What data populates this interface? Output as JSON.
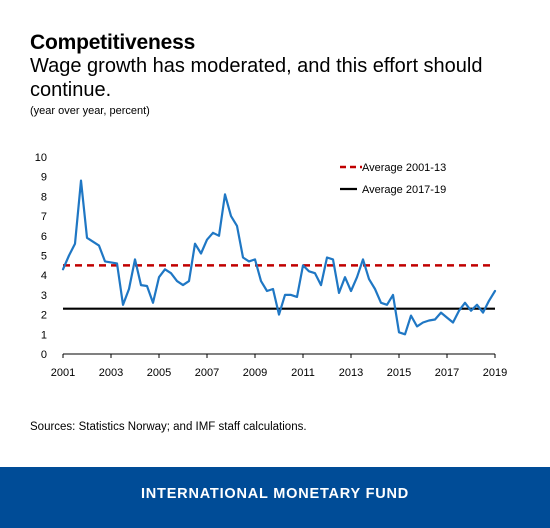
{
  "header": {
    "title": "Competitiveness",
    "subtitle": "Wage growth has moderated, and this effort should continue.",
    "units": "(year over year, percent)"
  },
  "source": "Sources: Statistics Norway; and IMF staff calculations.",
  "footer": {
    "org_name": "INTERNATIONAL MONETARY FUND",
    "color": "#004c97"
  },
  "chart_data": {
    "type": "line",
    "title": "",
    "xlabel": "",
    "ylabel": "",
    "xlim": [
      2001,
      2019
    ],
    "ylim": [
      0,
      10
    ],
    "x_ticks": [
      2001,
      2003,
      2005,
      2007,
      2009,
      2011,
      2013,
      2015,
      2017,
      2019
    ],
    "y_ticks": [
      0,
      1,
      2,
      3,
      4,
      5,
      6,
      7,
      8,
      9,
      10
    ],
    "grid": false,
    "legend_position": "top-right",
    "series": [
      {
        "name": "",
        "color": "#1f77c4",
        "style": "solid",
        "x": [
          2001.0,
          2001.25,
          2001.5,
          2001.75,
          2002.0,
          2002.25,
          2002.5,
          2002.75,
          2003.0,
          2003.25,
          2003.5,
          2003.75,
          2004.0,
          2004.25,
          2004.5,
          2004.75,
          2005.0,
          2005.25,
          2005.5,
          2005.75,
          2006.0,
          2006.25,
          2006.5,
          2006.75,
          2007.0,
          2007.25,
          2007.5,
          2007.75,
          2008.0,
          2008.25,
          2008.5,
          2008.75,
          2009.0,
          2009.25,
          2009.5,
          2009.75,
          2010.0,
          2010.25,
          2010.5,
          2010.75,
          2011.0,
          2011.25,
          2011.5,
          2011.75,
          2012.0,
          2012.25,
          2012.5,
          2012.75,
          2013.0,
          2013.25,
          2013.5,
          2013.75,
          2014.0,
          2014.25,
          2014.5,
          2014.75,
          2015.0,
          2015.25,
          2015.5,
          2015.75,
          2016.0,
          2016.25,
          2016.5,
          2016.75,
          2017.0,
          2017.25,
          2017.5,
          2017.75,
          2018.0,
          2018.25,
          2018.5,
          2018.75,
          2019.0
        ],
        "values": [
          4.3,
          5.0,
          5.6,
          8.8,
          5.9,
          5.7,
          5.5,
          4.7,
          4.65,
          4.6,
          2.5,
          3.3,
          4.8,
          3.5,
          3.45,
          2.6,
          3.9,
          4.3,
          4.1,
          3.7,
          3.5,
          3.7,
          5.6,
          5.1,
          5.8,
          6.15,
          6.0,
          8.1,
          7.0,
          6.5,
          4.9,
          4.7,
          4.8,
          3.7,
          3.2,
          3.3,
          2.0,
          3.0,
          3.0,
          2.9,
          4.5,
          4.2,
          4.1,
          3.5,
          4.9,
          4.8,
          3.1,
          3.9,
          3.2,
          3.9,
          4.8,
          3.8,
          3.3,
          2.6,
          2.5,
          3.0,
          1.1,
          1.0,
          1.95,
          1.4,
          1.6,
          1.7,
          1.75,
          2.1,
          1.85,
          1.6,
          2.2,
          2.6,
          2.2,
          2.5,
          2.1,
          2.7,
          3.2
        ]
      },
      {
        "name": "Average 2001-13",
        "color": "#c00000",
        "style": "dashed",
        "value": 4.5
      },
      {
        "name": "Average 2017-19",
        "color": "#000000",
        "style": "solid",
        "value": 2.3
      }
    ]
  }
}
